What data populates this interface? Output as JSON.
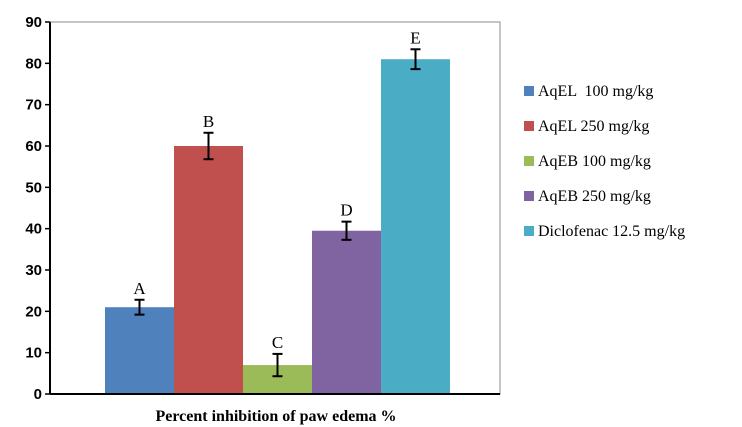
{
  "chart_data": {
    "type": "bar",
    "title": "",
    "xlabel": "Percent inhibition of paw edema %",
    "ylabel": "",
    "ylim": [
      0,
      90
    ],
    "yticks": [
      "0",
      "10",
      "20",
      "30",
      "40",
      "50",
      "60",
      "70",
      "80",
      "90"
    ],
    "grid": false,
    "legend_position": "right",
    "series": [
      {
        "name": "AqEL  100 mg/kg",
        "value": 21,
        "error": 1.8,
        "letter": "A",
        "color": "#4f81bd"
      },
      {
        "name": "AqEL 250 mg/kg",
        "value": 60,
        "error": 3.2,
        "letter": "B",
        "color": "#c0504d"
      },
      {
        "name": "AqEB 100 mg/kg",
        "value": 7,
        "error": 2.7,
        "letter": "C",
        "color": "#9bbb59"
      },
      {
        "name": "AqEB 250 mg/kg",
        "value": 39.5,
        "error": 2.2,
        "letter": "D",
        "color": "#8064a2"
      },
      {
        "name": "Diclofenac 12.5 mg/kg",
        "value": 81,
        "error": 2.4,
        "letter": "E",
        "color": "#4bacc6"
      }
    ]
  }
}
